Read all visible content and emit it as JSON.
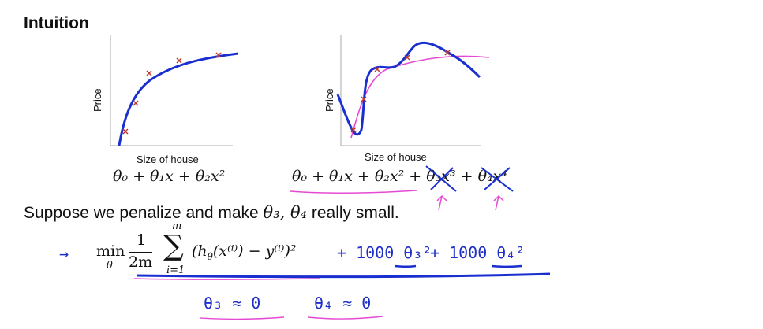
{
  "slide": {
    "title": "Intuition",
    "left_plot": {
      "ylabel": "Price",
      "xlabel": "Size of house",
      "hypothesis": "θ₀ + θ₁x + θ₂x²"
    },
    "right_plot": {
      "ylabel": "Price",
      "xlabel": "Size of house",
      "hypothesis_main": "θ₀ + θ₁x + θ₂x² + ",
      "hypothesis_term3": "θ₃x³",
      "hypothesis_plus": " + ",
      "hypothesis_term4": "θ₄x⁴"
    },
    "statement_text": "Suppose we penalize and make ",
    "statement_vars": "θ₃, θ₄",
    "statement_tail": " really small.",
    "objective": {
      "min": "min",
      "min_sub": "θ",
      "frac_num": "1",
      "frac_den": "2m",
      "sum_top": "m",
      "sum_bottom": "i=1",
      "body": "(h",
      "body_sub": "θ",
      "body_rest": "(x⁽ⁱ⁾) − y⁽ⁱ⁾)²"
    },
    "annotations": {
      "arrow": "→",
      "penalty1": "+ 1000 θ₃²",
      "penalty2": "+ 1000 θ₄²",
      "approx1": "θ₃ ≈ 0",
      "approx2": "θ₄ ≈ 0"
    }
  },
  "colors": {
    "curve": "#1a2fd0",
    "data_marks": "#c0392b",
    "pink_curve": "#e64ad2",
    "annotation_ink": "#1f2fc8"
  }
}
